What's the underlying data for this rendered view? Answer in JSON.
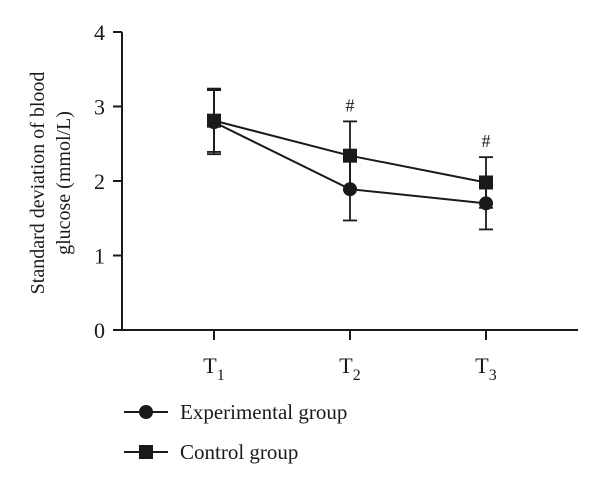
{
  "chart_data": {
    "type": "line",
    "title": "",
    "xlabel": "",
    "ylabel": "Standard deviation of blood glucose (mmol/L)",
    "ylabel_lines": [
      "Standard deviation of blood",
      "glucose (mmol/L)"
    ],
    "categories": [
      {
        "base": "T",
        "sub": "1"
      },
      {
        "base": "T",
        "sub": "2"
      },
      {
        "base": "T",
        "sub": "3"
      }
    ],
    "ylim": [
      0,
      4
    ],
    "yticks": [
      "0",
      "1",
      "2",
      "3",
      "4"
    ],
    "grid": false,
    "legend_position": "bottom-left",
    "series": [
      {
        "name": "Experimental group",
        "marker": "circle",
        "color": "#1a1a1a",
        "values": [
          2.79,
          1.89,
          1.7
        ],
        "error_low": [
          2.36,
          1.47,
          1.35
        ],
        "error_high": [
          3.22,
          2.31,
          2.05
        ]
      },
      {
        "name": "Control group",
        "marker": "square",
        "color": "#1a1a1a",
        "values": [
          2.81,
          2.34,
          1.98
        ],
        "error_low": [
          2.39,
          1.88,
          1.64
        ],
        "error_high": [
          3.24,
          2.8,
          2.32
        ]
      }
    ],
    "annotations": [
      {
        "category_index": 1,
        "text": "#"
      },
      {
        "category_index": 2,
        "text": "#"
      }
    ]
  }
}
